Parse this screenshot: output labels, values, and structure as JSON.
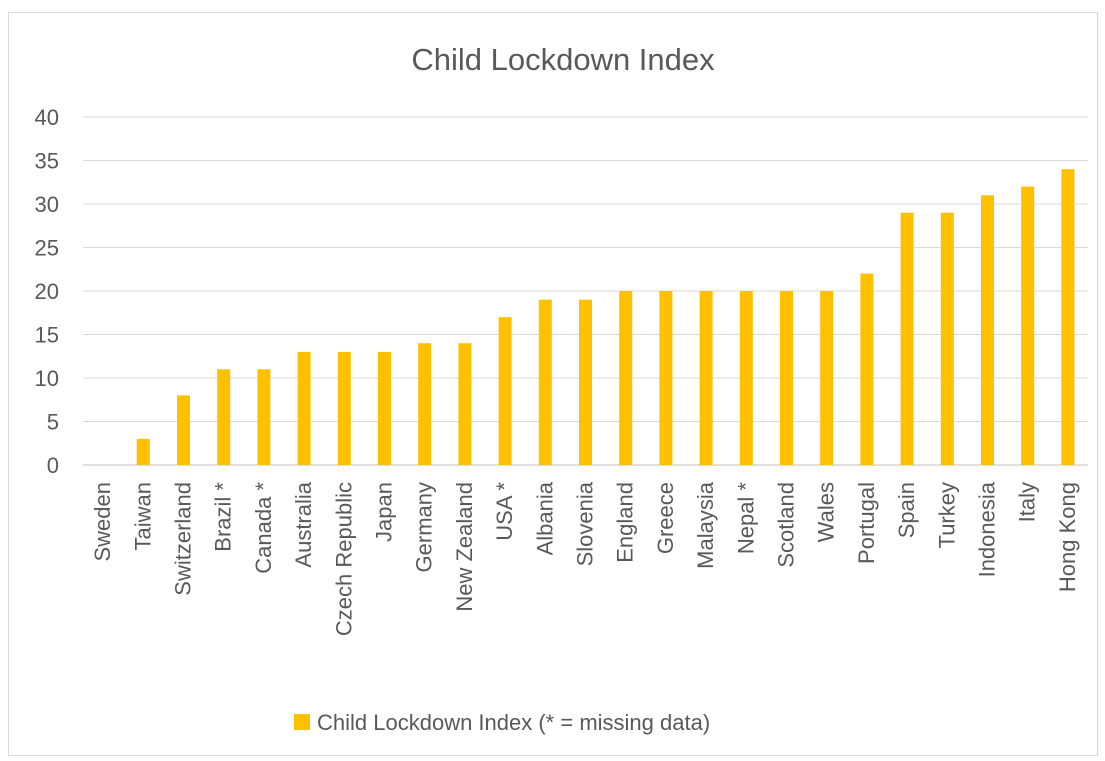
{
  "chart_data": {
    "type": "bar",
    "title": "Child Lockdown Index",
    "xlabel": "",
    "ylabel": "",
    "ylim": [
      0,
      40
    ],
    "yticks": [
      0,
      5,
      10,
      15,
      20,
      25,
      30,
      35,
      40
    ],
    "grid": true,
    "legend_position": "bottom",
    "color": "#FFC000",
    "categories": [
      "Sweden",
      "Taiwan",
      "Switzerland",
      "Brazil *",
      "Canada *",
      "Australia",
      "Czech Republic",
      "Japan",
      "Germany",
      "New Zealand",
      "USA *",
      "Albania",
      "Slovenia",
      "England",
      "Greece",
      "Malaysia",
      "Nepal *",
      "Scotland",
      "Wales",
      "Portugal",
      "Spain",
      "Turkey",
      "Indonesia",
      "Italy",
      "Hong Kong"
    ],
    "series": [
      {
        "name": "Child Lockdown Index (* = missing data)",
        "values": [
          0,
          3,
          8,
          11,
          11,
          13,
          13,
          13,
          14,
          14,
          17,
          19,
          19,
          20,
          20,
          20,
          20,
          20,
          20,
          22,
          29,
          29,
          31,
          32,
          34
        ]
      }
    ]
  }
}
